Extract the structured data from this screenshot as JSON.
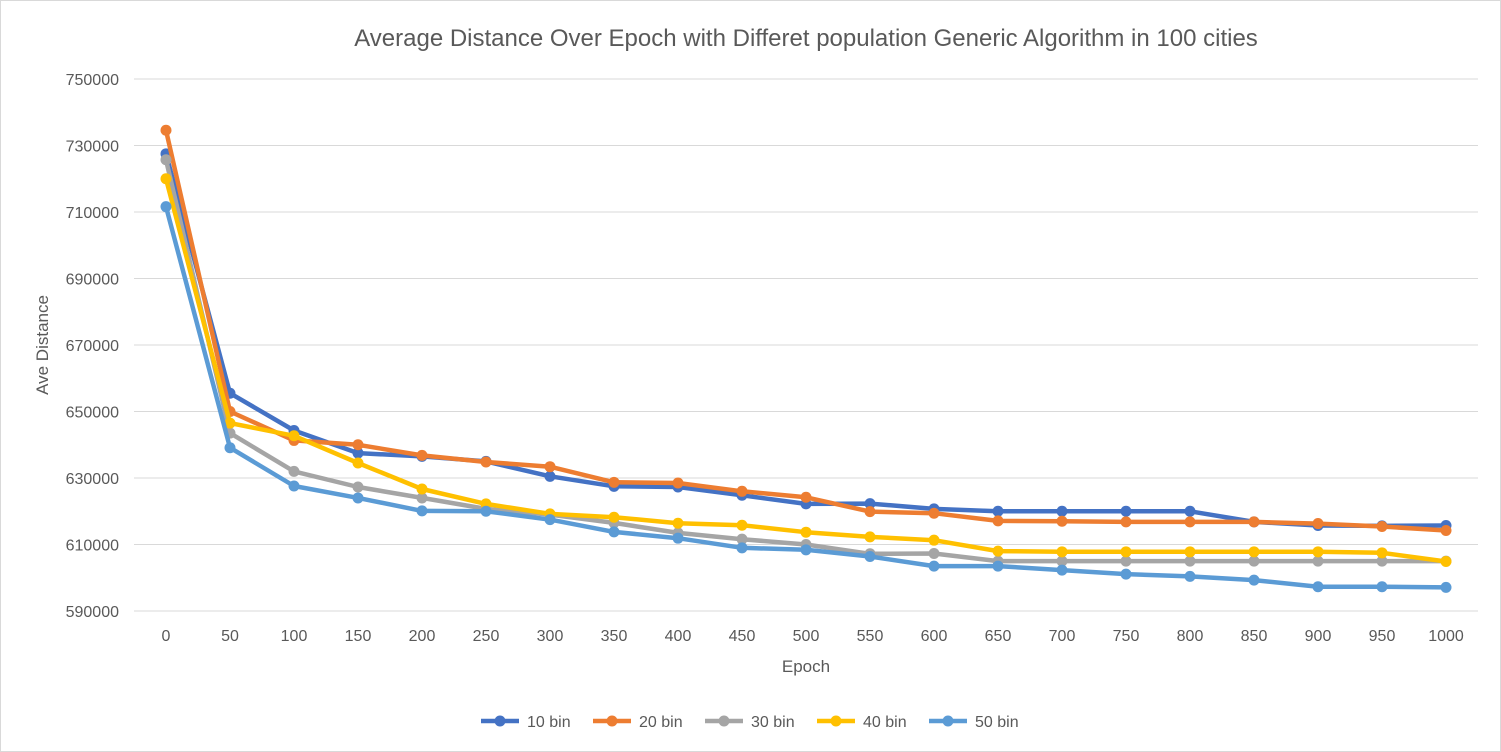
{
  "chart_data": {
    "type": "line",
    "title": "Average Distance Over Epoch with Differet population Generic Algorithm in 100 cities",
    "xlabel": "Epoch",
    "ylabel": "Ave Distance",
    "ylim": [
      590000,
      750000
    ],
    "yticks": [
      "590000",
      "610000",
      "630000",
      "650000",
      "670000",
      "690000",
      "710000",
      "730000",
      "750000"
    ],
    "grid": true,
    "legend_position": "bottom",
    "categories": [
      "0",
      "50",
      "100",
      "150",
      "200",
      "250",
      "300",
      "350",
      "400",
      "450",
      "500",
      "550",
      "600",
      "650",
      "700",
      "750",
      "800",
      "850",
      "900",
      "950",
      "1000"
    ],
    "series": [
      {
        "name": "10 bin",
        "color": "#4472c4",
        "values": [
          727500,
          655500,
          644300,
          637500,
          636500,
          635000,
          630500,
          627500,
          627300,
          624800,
          622200,
          622300,
          620700,
          620000,
          620000,
          620000,
          620000,
          616800,
          615700,
          615600,
          615700
        ]
      },
      {
        "name": "20 bin",
        "color": "#ed7d31",
        "values": [
          734600,
          650000,
          641300,
          640000,
          636800,
          634800,
          633400,
          628700,
          628500,
          626000,
          624200,
          619900,
          619400,
          617100,
          617000,
          616800,
          616800,
          616800,
          616300,
          615400,
          614200
        ]
      },
      {
        "name": "30 bin",
        "color": "#a5a5a5",
        "values": [
          725700,
          643500,
          632000,
          627300,
          624000,
          620700,
          619000,
          616500,
          613500,
          611600,
          610000,
          607200,
          607300,
          605000,
          605000,
          605000,
          605000,
          605000,
          605000,
          605000,
          605000
        ]
      },
      {
        "name": "40 bin",
        "color": "#ffc000",
        "values": [
          720000,
          646500,
          642700,
          634500,
          626700,
          622200,
          619200,
          618200,
          616400,
          615800,
          613700,
          612300,
          611300,
          608000,
          607800,
          607800,
          607800,
          607800,
          607800,
          607500,
          604900
        ]
      },
      {
        "name": "50 bin",
        "color": "#5b9bd5",
        "values": [
          711600,
          639100,
          627600,
          624000,
          620100,
          620000,
          617500,
          613800,
          611900,
          609000,
          608400,
          606400,
          603500,
          603500,
          602300,
          601100,
          600400,
          599300,
          597300,
          597300,
          597100
        ]
      }
    ]
  }
}
